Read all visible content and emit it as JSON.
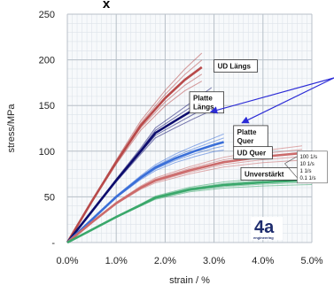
{
  "chart_data": {
    "type": "line",
    "xlabel": "strain / %",
    "ylabel": "stress/MPa",
    "xlim": [
      0,
      5
    ],
    "ylim": [
      0,
      250
    ],
    "x_ticks": [
      "0.0%",
      "1.0%",
      "2.0%",
      "3.0%",
      "4.0%",
      "5.0%"
    ],
    "y_ticks": [
      "-",
      "50",
      "100",
      "150",
      "200",
      "250"
    ],
    "grid": true,
    "top_fragment": "x",
    "series": [
      {
        "name": "UD Längs",
        "color": "#b84a4a",
        "points": [
          [
            0,
            0
          ],
          [
            0.5,
            45
          ],
          [
            1.0,
            88
          ],
          [
            1.5,
            128
          ],
          [
            2.0,
            158
          ],
          [
            2.4,
            178
          ],
          [
            2.75,
            192
          ]
        ]
      },
      {
        "name": "Platte Längs",
        "color": "#0d0d6e",
        "points": [
          [
            0,
            0
          ],
          [
            0.5,
            34
          ],
          [
            1.0,
            68
          ],
          [
            1.5,
            100
          ],
          [
            1.8,
            120
          ],
          [
            2.2,
            133
          ],
          [
            2.6,
            146
          ],
          [
            2.95,
            157
          ]
        ]
      },
      {
        "name": "Platte Quer",
        "color": "#3a6fd8",
        "points": [
          [
            0,
            0
          ],
          [
            0.5,
            25
          ],
          [
            1.0,
            50
          ],
          [
            1.5,
            71
          ],
          [
            1.8,
            82
          ],
          [
            2.2,
            92
          ],
          [
            2.6,
            100
          ],
          [
            3.0,
            107
          ],
          [
            3.2,
            110
          ]
        ]
      },
      {
        "name": "UD Quer",
        "color": "#cc6b6b",
        "points": [
          [
            0,
            0
          ],
          [
            0.5,
            22
          ],
          [
            1.0,
            43
          ],
          [
            1.5,
            60
          ],
          [
            1.8,
            68
          ],
          [
            2.5,
            79
          ],
          [
            3.2,
            88
          ],
          [
            4.0,
            94
          ],
          [
            4.8,
            98
          ]
        ]
      },
      {
        "name": "Unverstärkt",
        "color": "#3aa86b",
        "points": [
          [
            0,
            0
          ],
          [
            0.5,
            14
          ],
          [
            1.0,
            28
          ],
          [
            1.5,
            41
          ],
          [
            1.8,
            49
          ],
          [
            2.5,
            58
          ],
          [
            3.2,
            63
          ],
          [
            4.0,
            66
          ],
          [
            4.8,
            68
          ],
          [
            5.0,
            69
          ]
        ]
      }
    ],
    "labels": [
      {
        "text": "UD Längs",
        "series": "UD Längs"
      },
      {
        "text": "Platte",
        "text2": "Längs",
        "series": "Platte Längs"
      },
      {
        "text": "Platte",
        "text2": "Quer",
        "series": "Platte Quer"
      },
      {
        "text": "UD Quer",
        "series": "UD Quer"
      },
      {
        "text": "Unverstärkt",
        "series": "Unverstärkt"
      }
    ],
    "strain_rates": [
      "100 1/s",
      "10 1/s",
      "1 1/s",
      "0.1 1/s"
    ],
    "annotation_color": "#2b2bd6"
  },
  "logo": {
    "text": "4a",
    "subtitle": "engineering"
  }
}
